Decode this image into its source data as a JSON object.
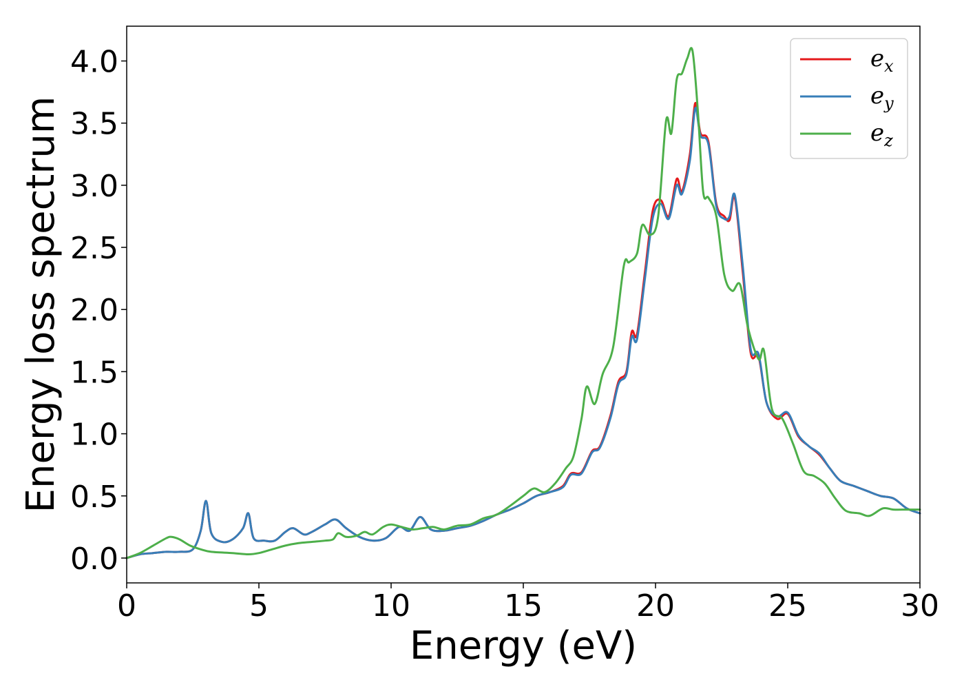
{
  "chart_data": {
    "type": "line",
    "title": "",
    "xlabel": "Energy (eV)",
    "ylabel": "Energy loss spectrum",
    "xlim": [
      0,
      30
    ],
    "ylim": [
      -0.2,
      4.28
    ],
    "xticks": [
      0,
      5,
      10,
      15,
      20,
      25,
      30
    ],
    "xtick_labels": [
      "0",
      "5",
      "10",
      "15",
      "20",
      "25",
      "30"
    ],
    "yticks": [
      0.0,
      0.5,
      1.0,
      1.5,
      2.0,
      2.5,
      3.0,
      3.5,
      4.0
    ],
    "ytick_labels": [
      "0.0",
      "0.5",
      "1.0",
      "1.5",
      "2.0",
      "2.5",
      "3.0",
      "3.5",
      "4.0"
    ],
    "grid": false,
    "legend_position": "top-right",
    "series": [
      {
        "name": "e_x",
        "legend_base": "e",
        "legend_sub": "x",
        "color": "#e41a1c",
        "x": [
          0,
          0.5,
          1,
          1.5,
          2,
          2.5,
          2.8,
          3.0,
          3.2,
          3.6,
          4.0,
          4.4,
          4.6,
          4.8,
          5.2,
          5.6,
          6.0,
          6.3,
          6.7,
          7.0,
          7.5,
          7.9,
          8.3,
          8.8,
          9.3,
          9.8,
          10.3,
          10.7,
          11.1,
          11.5,
          12.0,
          12.5,
          13.0,
          13.5,
          14.0,
          14.5,
          15.0,
          15.5,
          16.0,
          16.5,
          16.8,
          17.2,
          17.6,
          17.9,
          18.3,
          18.6,
          18.9,
          19.1,
          19.3,
          19.6,
          19.9,
          20.2,
          20.5,
          20.8,
          21.0,
          21.3,
          21.5,
          21.7,
          22.0,
          22.3,
          22.6,
          22.8,
          23.0,
          23.3,
          23.6,
          23.9,
          24.2,
          24.6,
          25.0,
          25.4,
          25.8,
          26.2,
          26.6,
          27.0,
          27.5,
          28.0,
          28.5,
          29.0,
          29.5,
          30.0
        ],
        "values": [
          0.0,
          0.03,
          0.04,
          0.05,
          0.05,
          0.07,
          0.22,
          0.46,
          0.2,
          0.13,
          0.15,
          0.24,
          0.36,
          0.16,
          0.14,
          0.14,
          0.21,
          0.24,
          0.19,
          0.21,
          0.27,
          0.31,
          0.24,
          0.17,
          0.14,
          0.16,
          0.25,
          0.22,
          0.33,
          0.23,
          0.22,
          0.24,
          0.26,
          0.3,
          0.35,
          0.39,
          0.44,
          0.5,
          0.53,
          0.58,
          0.68,
          0.69,
          0.86,
          0.9,
          1.15,
          1.42,
          1.5,
          1.82,
          1.8,
          2.3,
          2.8,
          2.88,
          2.75,
          3.05,
          2.95,
          3.25,
          3.66,
          3.42,
          3.35,
          2.85,
          2.75,
          2.72,
          2.9,
          2.3,
          1.65,
          1.62,
          1.25,
          1.12,
          1.16,
          0.98,
          0.9,
          0.83,
          0.72,
          0.62,
          0.58,
          0.54,
          0.5,
          0.48,
          0.4,
          0.36
        ]
      },
      {
        "name": "e_y",
        "legend_base": "e",
        "legend_sub": "y",
        "color": "#377eb8",
        "x": [
          0,
          0.5,
          1,
          1.5,
          2,
          2.5,
          2.8,
          3.0,
          3.2,
          3.6,
          4.0,
          4.4,
          4.6,
          4.8,
          5.2,
          5.6,
          6.0,
          6.3,
          6.7,
          7.0,
          7.5,
          7.9,
          8.3,
          8.8,
          9.3,
          9.8,
          10.3,
          10.7,
          11.1,
          11.5,
          12.0,
          12.5,
          13.0,
          13.5,
          14.0,
          14.5,
          15.0,
          15.5,
          16.0,
          16.5,
          16.8,
          17.2,
          17.6,
          17.9,
          18.3,
          18.6,
          18.9,
          19.1,
          19.3,
          19.6,
          19.9,
          20.2,
          20.5,
          20.8,
          21.0,
          21.3,
          21.5,
          21.7,
          22.0,
          22.3,
          22.6,
          22.8,
          23.0,
          23.3,
          23.6,
          23.9,
          24.2,
          24.6,
          25.0,
          25.4,
          25.8,
          26.2,
          26.6,
          27.0,
          27.5,
          28.0,
          28.5,
          29.0,
          29.5,
          30.0
        ],
        "values": [
          0.0,
          0.03,
          0.04,
          0.05,
          0.05,
          0.07,
          0.22,
          0.46,
          0.2,
          0.13,
          0.15,
          0.24,
          0.36,
          0.16,
          0.14,
          0.14,
          0.21,
          0.24,
          0.19,
          0.21,
          0.27,
          0.31,
          0.24,
          0.17,
          0.14,
          0.16,
          0.25,
          0.22,
          0.33,
          0.23,
          0.22,
          0.24,
          0.26,
          0.3,
          0.35,
          0.39,
          0.44,
          0.5,
          0.53,
          0.57,
          0.67,
          0.68,
          0.85,
          0.89,
          1.13,
          1.4,
          1.48,
          1.78,
          1.76,
          2.25,
          2.74,
          2.85,
          2.73,
          3.0,
          2.93,
          3.2,
          3.62,
          3.4,
          3.33,
          2.83,
          2.73,
          2.75,
          2.92,
          2.35,
          1.68,
          1.64,
          1.25,
          1.14,
          1.17,
          0.99,
          0.9,
          0.84,
          0.72,
          0.62,
          0.58,
          0.54,
          0.5,
          0.48,
          0.4,
          0.36
        ]
      },
      {
        "name": "e_z",
        "legend_base": "e",
        "legend_sub": "z",
        "color": "#4daf4a",
        "x": [
          0,
          0.5,
          1,
          1.5,
          1.7,
          2.0,
          2.4,
          2.8,
          3.2,
          4.0,
          4.6,
          5.0,
          5.5,
          6.0,
          6.5,
          7.0,
          7.5,
          7.8,
          8.0,
          8.3,
          8.7,
          9.0,
          9.3,
          9.7,
          10.0,
          10.4,
          10.8,
          11.2,
          11.6,
          12.0,
          12.5,
          13.0,
          13.5,
          14.0,
          14.5,
          15.0,
          15.4,
          15.8,
          16.2,
          16.6,
          16.9,
          17.2,
          17.4,
          17.7,
          18.0,
          18.4,
          18.8,
          19.0,
          19.3,
          19.5,
          19.8,
          20.1,
          20.4,
          20.6,
          20.8,
          21.0,
          21.2,
          21.4,
          21.6,
          21.8,
          22.0,
          22.3,
          22.6,
          22.9,
          23.2,
          23.5,
          23.9,
          24.1,
          24.4,
          24.8,
          25.2,
          25.6,
          26.0,
          26.4,
          26.8,
          27.2,
          27.7,
          28.1,
          28.6,
          29.0,
          29.5,
          30.0
        ],
        "values": [
          0.0,
          0.04,
          0.1,
          0.16,
          0.17,
          0.15,
          0.1,
          0.07,
          0.05,
          0.04,
          0.03,
          0.04,
          0.07,
          0.1,
          0.12,
          0.13,
          0.14,
          0.15,
          0.2,
          0.17,
          0.18,
          0.21,
          0.19,
          0.25,
          0.27,
          0.25,
          0.23,
          0.24,
          0.25,
          0.23,
          0.26,
          0.27,
          0.32,
          0.35,
          0.42,
          0.5,
          0.56,
          0.53,
          0.6,
          0.72,
          0.82,
          1.12,
          1.38,
          1.24,
          1.48,
          1.7,
          2.35,
          2.38,
          2.45,
          2.68,
          2.6,
          2.75,
          3.52,
          3.42,
          3.85,
          3.9,
          4.02,
          4.08,
          3.6,
          2.95,
          2.9,
          2.75,
          2.28,
          2.15,
          2.2,
          1.85,
          1.6,
          1.67,
          1.2,
          1.12,
          0.92,
          0.7,
          0.66,
          0.6,
          0.48,
          0.38,
          0.36,
          0.34,
          0.4,
          0.39,
          0.39,
          0.39
        ]
      }
    ]
  }
}
